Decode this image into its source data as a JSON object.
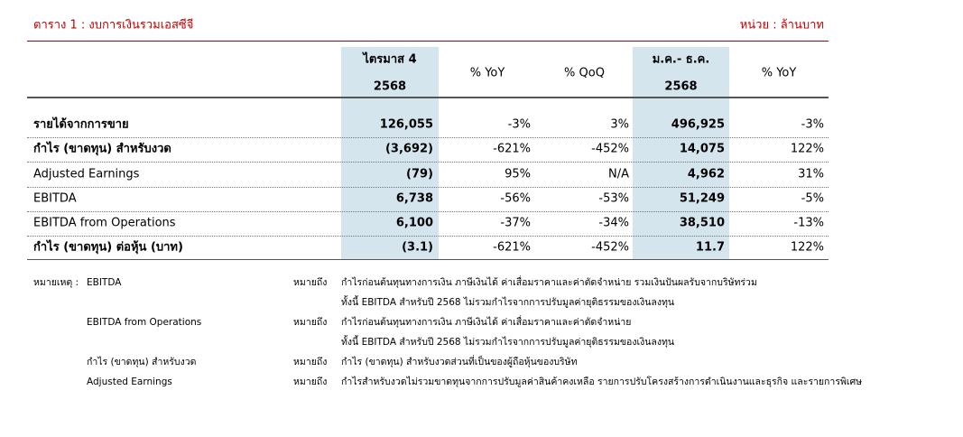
{
  "header": {
    "title": "ตาราง 1  :  งบการเงินรวมเอสซีจี",
    "unit": "หน่วย : ล้านบาท"
  },
  "table": {
    "columns": [
      [
        "ไตรมาส 4",
        "2568"
      ],
      [
        "% YoY"
      ],
      [
        "% QoQ"
      ],
      [
        "ม.ค.- ธ.ค.",
        "2568"
      ],
      [
        "% YoY"
      ]
    ],
    "rows": [
      [
        "รายได้จากการขาย",
        "126,055",
        "-3%",
        "3%",
        "496,925",
        "-3%"
      ],
      [
        "กำไร (ขาดทุน) สำหรับงวด",
        "(3,692)",
        "-621%",
        "-452%",
        "14,075",
        "122%"
      ],
      [
        "Adjusted Earnings",
        "(79)",
        "95%",
        "N/A",
        "4,962",
        "31%"
      ],
      [
        "EBITDA",
        "6,738",
        "-56%",
        "-53%",
        "51,249",
        "-5%"
      ],
      [
        "EBITDA from Operations",
        "6,100",
        "-37%",
        "-34%",
        "38,510",
        "-13%"
      ],
      [
        "กำไร (ขาดทุน) ต่อหุ้น (บาท)",
        "(3.1)",
        "-621%",
        "-452%",
        "11.7",
        "122%"
      ]
    ]
  },
  "notes": {
    "prefix": "หมายเหตุ :",
    "items": [
      {
        "term": "EBITDA",
        "means": "หมายถึง",
        "lines": [
          "กำไรก่อนต้นทุนทางการเงิน ภาษีเงินได้ ค่าเสื่อมราคาและค่าตัดจำหน่าย รวมเงินปันผลรับจากบริษัทร่วม",
          "ทั้งนี้ EBITDA สำหรับปี 2568 ไม่รวมกำไรจากการปรับมูลค่ายุติธรรมของเงินลงทุน"
        ]
      },
      {
        "term": "EBITDA from Operations",
        "means": "หมายถึง",
        "lines": [
          "กำไรก่อนต้นทุนทางการเงิน ภาษีเงินได้ ค่าเสื่อมราคาและค่าตัดจำหน่าย",
          "ทั้งนี้ EBITDA สำหรับปี 2568 ไม่รวมกำไรจากการปรับมูลค่ายุติธรรมของเงินลงทุน"
        ]
      },
      {
        "term": "กำไร (ขาดทุน) สำหรับงวด",
        "means": "หมายถึง",
        "lines": [
          "กำไร (ขาดทุน) สำหรับงวดส่วนที่เป็นของผู้ถือหุ้นของบริษัท"
        ]
      },
      {
        "term": "Adjusted Earnings",
        "means": "หมายถึง",
        "lines": [
          "กำไรสำหรับงวดไม่รวมขาดทุนจากการปรับมูลค่าสินค้าคงเหลือ รายการปรับโครงสร้างการดำเนินงานและธุรกิจ และรายการพิเศษ"
        ]
      }
    ]
  }
}
